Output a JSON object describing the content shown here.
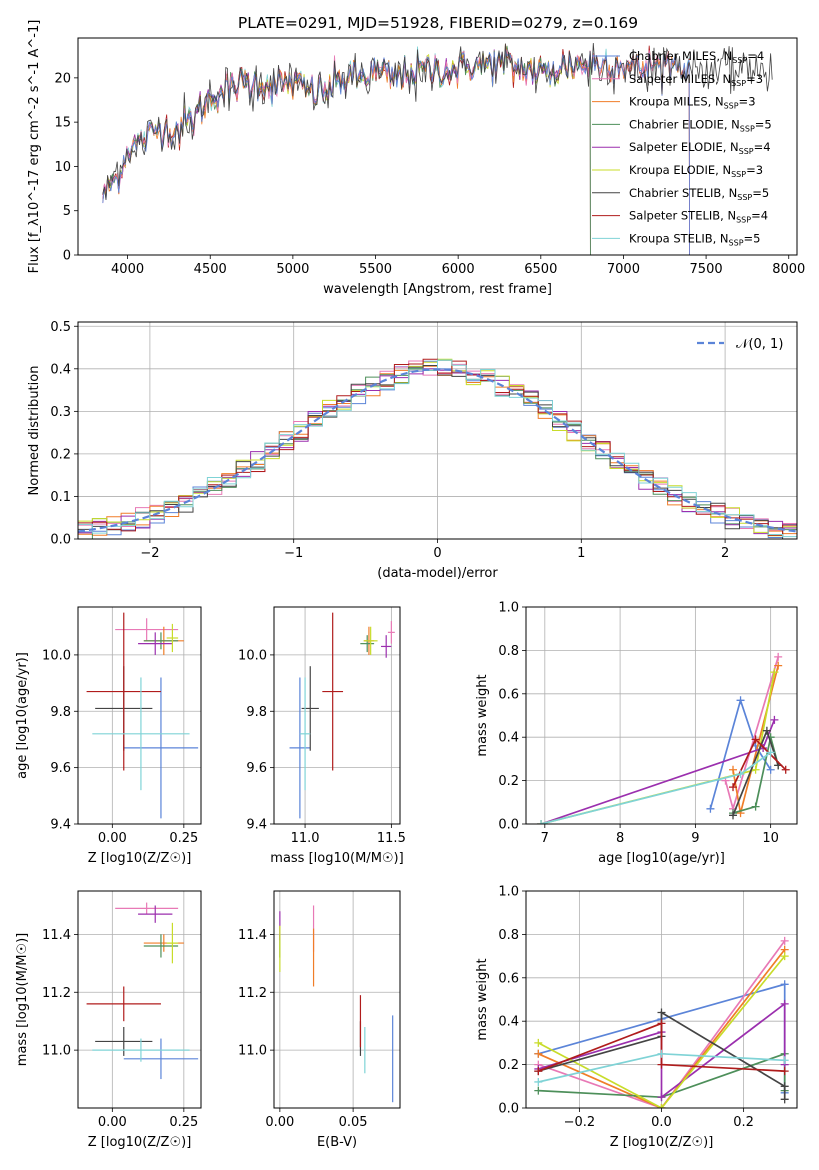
{
  "title": "PLATE=0291, MJD=51928, FIBERID=0279, z=0.169",
  "colors": {
    "Chabrier MILES": "#5b84d8",
    "Salpeter MILES": "#e879b6",
    "Kroupa MILES": "#f07d28",
    "Chabrier ELODIE": "#4d8f5a",
    "Salpeter ELODIE": "#9b2fae",
    "Kroupa ELODIE": "#c8dc2a",
    "Chabrier STELIB": "#444444",
    "Salpeter STELIB": "#b01c1c",
    "Kroupa STELIB": "#7fd3d6",
    "gauss": "#5b84d8"
  },
  "chart_data": [
    {
      "id": "spectrum",
      "type": "line",
      "xlabel": "wavelength [Angstrom, rest frame]",
      "ylabel": "Flux [f_λ10^-17 erg cm^-2 s^-1 A^-1]",
      "xlim": [
        3700,
        8050
      ],
      "ylim": [
        0,
        24.5
      ],
      "xticks": [
        4000,
        4500,
        5000,
        5500,
        6000,
        6500,
        7000,
        7500,
        8000
      ],
      "yticks": [
        0,
        5,
        10,
        15,
        20
      ],
      "grid": false,
      "legend_position": "top-right",
      "legend": [
        {
          "model": "Chabrier MILES",
          "nssp": "4"
        },
        {
          "model": "Salpeter MILES",
          "nssp": "3"
        },
        {
          "model": "Kroupa MILES",
          "nssp": "3"
        },
        {
          "model": "Chabrier ELODIE",
          "nssp": "5"
        },
        {
          "model": "Salpeter ELODIE",
          "nssp": "4"
        },
        {
          "model": "Kroupa ELODIE",
          "nssp": "3"
        },
        {
          "model": "Chabrier STELIB",
          "nssp": "5"
        },
        {
          "model": "Salpeter STELIB",
          "nssp": "4"
        },
        {
          "model": "Kroupa STELIB",
          "nssp": "5"
        }
      ],
      "continuum": {
        "x": [
          3850,
          3900,
          3950,
          4000,
          4100,
          4200,
          4300,
          4400,
          4500,
          4600,
          4700,
          4800,
          4900,
          5000,
          5100,
          5200,
          5300,
          5400,
          5500,
          5600,
          5700,
          5800,
          5900,
          6000,
          6100,
          6200,
          6300,
          6400,
          6500,
          6600,
          6700,
          6800,
          6900,
          7000,
          7100,
          7200,
          7300,
          7400,
          7500,
          7600
        ],
        "y": [
          6.5,
          8,
          9,
          12,
          13,
          14.5,
          14,
          15.5,
          18,
          18.5,
          19.5,
          19.5,
          19,
          19.5,
          18.5,
          18.5,
          20,
          20,
          20.5,
          20,
          20.5,
          21,
          21,
          21,
          21.5,
          21.5,
          21.5,
          21,
          20.5,
          21,
          21.5,
          21.5,
          21.5,
          21.5,
          21,
          21.5,
          21.5,
          21,
          21,
          21
        ]
      },
      "model_end_wavelength": {
        "Chabrier MILES": 7400,
        "Salpeter MILES": 7400,
        "Kroupa MILES": 7400,
        "Chabrier ELODIE": 6800,
        "Salpeter ELODIE": 6800,
        "Kroupa ELODIE": 6800,
        "Chabrier STELIB": 7900,
        "Salpeter STELIB": 7400,
        "Kroupa STELIB": 7400
      }
    },
    {
      "id": "residuals",
      "type": "line",
      "xlabel": "(data-model)/error",
      "ylabel": "Normed distribution",
      "xlim": [
        -2.5,
        2.5
      ],
      "ylim": [
        0,
        0.51
      ],
      "xticks": [
        -2,
        -1,
        0,
        1,
        2
      ],
      "xticklabels": [
        "−2",
        "−1",
        "0",
        "1",
        "2"
      ],
      "yticks": [
        0,
        0.1,
        0.2,
        0.3,
        0.4,
        0.5
      ],
      "yticklabels": [
        "0.0",
        "0.1",
        "0.2",
        "0.3",
        "0.4",
        "0.5"
      ],
      "grid": true,
      "legend_position": "top-right",
      "legend_label": "𝒩(0, 1)",
      "bin_width": 0.1
    },
    {
      "id": "age-vs-Z",
      "type": "scatter",
      "xlabel": "Z [log10(Z/Z☉)]",
      "ylabel": "age  [log10(age/yr)]",
      "xlim": [
        -0.12,
        0.31
      ],
      "ylim": [
        9.4,
        10.17
      ],
      "xticks": [
        0,
        0.25
      ],
      "xticklabels": [
        "0.00",
        "0.25"
      ],
      "yticks": [
        9.4,
        9.6,
        9.8,
        10.0
      ],
      "yticklabels": [
        "9.4",
        "9.6",
        "9.8",
        "10.0"
      ],
      "grid": true,
      "points": [
        {
          "model": "Chabrier MILES",
          "x": 0.17,
          "xerr": 0.13,
          "y": 9.67,
          "yerr": 0.25
        },
        {
          "model": "Salpeter MILES",
          "x": 0.12,
          "xerr": 0.11,
          "y": 10.09,
          "yerr": 0.04
        },
        {
          "model": "Kroupa MILES",
          "x": 0.18,
          "xerr": 0.07,
          "y": 10.05,
          "yerr": 0.05
        },
        {
          "model": "Chabrier ELODIE",
          "x": 0.17,
          "xerr": 0.06,
          "y": 10.05,
          "yerr": 0.03
        },
        {
          "model": "Salpeter ELODIE",
          "x": 0.15,
          "xerr": 0.06,
          "y": 10.04,
          "yerr": 0.04
        },
        {
          "model": "Kroupa ELODIE",
          "x": 0.21,
          "xerr": 0.02,
          "y": 10.06,
          "yerr": 0.05
        },
        {
          "model": "Chabrier STELIB",
          "x": 0.04,
          "xerr": 0.1,
          "y": 9.81,
          "yerr": 0.15
        },
        {
          "model": "Salpeter STELIB",
          "x": 0.04,
          "xerr": 0.13,
          "y": 9.87,
          "yerr": 0.28
        },
        {
          "model": "Kroupa STELIB",
          "x": 0.1,
          "xerr": 0.17,
          "y": 9.72,
          "yerr": 0.2
        }
      ]
    },
    {
      "id": "age-vs-mass",
      "type": "scatter",
      "xlabel": "mass [log10(M/M☉)]",
      "ylabel": "",
      "xlim": [
        10.82,
        11.55
      ],
      "ylim": [
        9.4,
        10.17
      ],
      "xticks": [
        11.0,
        11.5
      ],
      "xticklabels": [
        "11.0",
        "11.5"
      ],
      "yticks": [
        9.4,
        9.6,
        9.8,
        10.0
      ],
      "yticklabels": [
        "9.4",
        "9.6",
        "9.8",
        "10.0"
      ],
      "grid": true,
      "points": [
        {
          "model": "Chabrier MILES",
          "x": 10.97,
          "xerr": 0.06,
          "y": 9.67,
          "yerr": 0.25
        },
        {
          "model": "Salpeter MILES",
          "x": 11.5,
          "xerr": 0.02,
          "y": 10.08,
          "yerr": 0.04
        },
        {
          "model": "Kroupa MILES",
          "x": 11.37,
          "xerr": 0.03,
          "y": 10.05,
          "yerr": 0.05
        },
        {
          "model": "Chabrier ELODIE",
          "x": 11.36,
          "xerr": 0.04,
          "y": 10.04,
          "yerr": 0.03
        },
        {
          "model": "Salpeter ELODIE",
          "x": 11.47,
          "xerr": 0.03,
          "y": 10.03,
          "yerr": 0.04
        },
        {
          "model": "Kroupa ELODIE",
          "x": 11.38,
          "xerr": 0.04,
          "y": 10.05,
          "yerr": 0.05
        },
        {
          "model": "Chabrier STELIB",
          "x": 11.03,
          "xerr": 0.05,
          "y": 9.81,
          "yerr": 0.15
        },
        {
          "model": "Salpeter STELIB",
          "x": 11.16,
          "xerr": 0.06,
          "y": 9.87,
          "yerr": 0.28
        },
        {
          "model": "Kroupa STELIB",
          "x": 11.0,
          "xerr": 0.03,
          "y": 9.72,
          "yerr": 0.2
        }
      ]
    },
    {
      "id": "weight-vs-age",
      "type": "line",
      "xlabel": "age  [log10(age/yr)]",
      "ylabel": "mass weight",
      "xlim": [
        6.75,
        10.35
      ],
      "ylim": [
        0,
        1
      ],
      "xticks": [
        7,
        8,
        9,
        10
      ],
      "yticks": [
        0,
        0.2,
        0.4,
        0.6,
        0.8,
        1.0
      ],
      "yticklabels": [
        "0.0",
        "0.2",
        "0.4",
        "0.6",
        "0.8",
        "1.0"
      ],
      "grid": true,
      "series": [
        {
          "model": "Chabrier MILES",
          "x": [
            9.2,
            9.6,
            9.8,
            10.0
          ],
          "y": [
            0.07,
            0.57,
            0.36,
            0.25
          ]
        },
        {
          "model": "Salpeter MILES",
          "x": [
            9.4,
            9.5,
            10.1
          ],
          "y": [
            0.2,
            0.07,
            0.77
          ]
        },
        {
          "model": "Kroupa MILES",
          "x": [
            9.5,
            9.6,
            10.1
          ],
          "y": [
            0.25,
            0.05,
            0.73
          ]
        },
        {
          "model": "Chabrier ELODIE",
          "x": [
            9.5,
            9.8,
            10.0,
            10.1
          ],
          "y": [
            0.05,
            0.08,
            0.4,
            0.27
          ]
        },
        {
          "model": "Salpeter ELODIE",
          "x": [
            6.95,
            9.9,
            10.05
          ],
          "y": [
            0.0,
            0.35,
            0.48
          ]
        },
        {
          "model": "Kroupa ELODIE",
          "x": [
            6.95,
            9.8,
            10.05
          ],
          "y": [
            0.0,
            0.25,
            0.7
          ]
        },
        {
          "model": "Chabrier STELIB",
          "x": [
            9.5,
            9.95,
            10.1
          ],
          "y": [
            0.04,
            0.43,
            0.27
          ]
        },
        {
          "model": "Salpeter STELIB",
          "x": [
            9.5,
            9.8,
            10.2
          ],
          "y": [
            0.17,
            0.39,
            0.25
          ]
        },
        {
          "model": "Kroupa STELIB",
          "x": [
            6.95,
            9.6,
            10.0
          ],
          "y": [
            0.0,
            0.23,
            0.33
          ]
        }
      ]
    },
    {
      "id": "mass-vs-Z",
      "type": "scatter",
      "xlabel": "Z [log10(Z/Z☉)]",
      "ylabel": "mass [log10(M/M☉)]",
      "xlim": [
        -0.12,
        0.31
      ],
      "ylim": [
        10.8,
        11.55
      ],
      "xticks": [
        0,
        0.25
      ],
      "xticklabels": [
        "0.00",
        "0.25"
      ],
      "yticks": [
        11.0,
        11.2,
        11.4
      ],
      "yticklabels": [
        "11.0",
        "11.2",
        "11.4"
      ],
      "grid": true,
      "points": [
        {
          "model": "Chabrier MILES",
          "x": 0.17,
          "xerr": 0.13,
          "y": 10.97,
          "yerr": 0.07
        },
        {
          "model": "Salpeter MILES",
          "x": 0.12,
          "xerr": 0.11,
          "y": 11.49,
          "yerr": 0.02
        },
        {
          "model": "Kroupa MILES",
          "x": 0.18,
          "xerr": 0.07,
          "y": 11.37,
          "yerr": 0.03
        },
        {
          "model": "Chabrier ELODIE",
          "x": 0.17,
          "xerr": 0.06,
          "y": 11.36,
          "yerr": 0.04
        },
        {
          "model": "Salpeter ELODIE",
          "x": 0.15,
          "xerr": 0.06,
          "y": 11.47,
          "yerr": 0.03
        },
        {
          "model": "Kroupa ELODIE",
          "x": 0.21,
          "xerr": 0.02,
          "y": 11.37,
          "yerr": 0.07
        },
        {
          "model": "Chabrier STELIB",
          "x": 0.04,
          "xerr": 0.1,
          "y": 11.03,
          "yerr": 0.05
        },
        {
          "model": "Salpeter STELIB",
          "x": 0.04,
          "xerr": 0.13,
          "y": 11.16,
          "yerr": 0.06
        },
        {
          "model": "Kroupa STELIB",
          "x": 0.1,
          "xerr": 0.17,
          "y": 11.0,
          "yerr": 0.04
        }
      ]
    },
    {
      "id": "mass-vs-EBV",
      "type": "scatter",
      "xlabel": "E(B-V)",
      "ylabel": "",
      "xlim": [
        -0.004,
        0.082
      ],
      "ylim": [
        10.8,
        11.55
      ],
      "xticks": [
        0.0,
        0.05
      ],
      "xticklabels": [
        "0.00",
        "0.05"
      ],
      "yticks": [
        11.0,
        11.2,
        11.4
      ],
      "yticklabels": [
        "11.0",
        "11.2",
        "11.4"
      ],
      "grid": true,
      "points": [
        {
          "model": "Chabrier MILES",
          "x": 0.077,
          "xerr": 0,
          "y": 10.97,
          "yerr": 0.15
        },
        {
          "model": "Salpeter MILES",
          "x": 0.023,
          "xerr": 0,
          "y": 11.42,
          "yerr": 0.08
        },
        {
          "model": "Kroupa MILES",
          "x": 0.023,
          "xerr": 0,
          "y": 11.32,
          "yerr": 0.1
        },
        {
          "model": "Chabrier ELODIE",
          "x": 0.0,
          "xerr": 0,
          "y": 11.36,
          "yerr": 0.04
        },
        {
          "model": "Salpeter ELODIE",
          "x": 0.0,
          "xerr": 0,
          "y": 11.43,
          "yerr": 0.05
        },
        {
          "model": "Kroupa ELODIE",
          "x": 0.0,
          "xerr": 0,
          "y": 11.35,
          "yerr": 0.08
        },
        {
          "model": "Chabrier STELIB",
          "x": 0.055,
          "xerr": 0,
          "y": 11.04,
          "yerr": 0.06
        },
        {
          "model": "Salpeter STELIB",
          "x": 0.055,
          "xerr": 0,
          "y": 11.1,
          "yerr": 0.09
        },
        {
          "model": "Kroupa STELIB",
          "x": 0.058,
          "xerr": 0,
          "y": 11.0,
          "yerr": 0.08
        }
      ]
    },
    {
      "id": "weight-vs-Z",
      "type": "line",
      "xlabel": "Z [log10(Z/Z☉)]",
      "ylabel": "mass weight",
      "xlim": [
        -0.33,
        0.33
      ],
      "ylim": [
        0,
        1
      ],
      "xticks": [
        -0.2,
        0,
        0.2
      ],
      "xticklabels": [
        "−0.2",
        "0.0",
        "0.2"
      ],
      "yticks": [
        0,
        0.2,
        0.4,
        0.6,
        0.8,
        1.0
      ],
      "yticklabels": [
        "0.0",
        "0.2",
        "0.4",
        "0.6",
        "0.8",
        "1.0"
      ],
      "grid": true,
      "series": [
        {
          "model": "Chabrier MILES",
          "x": [
            -0.3,
            0.0,
            0.3,
            0.3
          ],
          "y": [
            0.25,
            0.41,
            0.57,
            0.07
          ]
        },
        {
          "model": "Salpeter MILES",
          "x": [
            -0.3,
            0.0,
            0.3
          ],
          "y": [
            0.2,
            0.0,
            0.77
          ]
        },
        {
          "model": "Kroupa MILES",
          "x": [
            -0.3,
            0.0,
            0.3
          ],
          "y": [
            0.25,
            0.0,
            0.73
          ]
        },
        {
          "model": "Chabrier ELODIE",
          "x": [
            -0.3,
            0.0,
            0.3,
            0.3
          ],
          "y": [
            0.08,
            0.05,
            0.25,
            0.08
          ]
        },
        {
          "model": "Salpeter ELODIE",
          "x": [
            -0.3,
            0.0,
            0.0,
            0.3,
            0.3
          ],
          "y": [
            0.18,
            0.35,
            0.05,
            0.48,
            0.2
          ]
        },
        {
          "model": "Kroupa ELODIE",
          "x": [
            -0.3,
            0.0,
            0.3
          ],
          "y": [
            0.3,
            0.0,
            0.7
          ]
        },
        {
          "model": "Chabrier STELIB",
          "x": [
            -0.3,
            0.0,
            0.0,
            0.3,
            0.3
          ],
          "y": [
            0.17,
            0.33,
            0.44,
            0.1,
            0.04
          ]
        },
        {
          "model": "Salpeter STELIB",
          "x": [
            -0.3,
            0.0,
            0.0,
            0.3
          ],
          "y": [
            0.17,
            0.39,
            0.2,
            0.17
          ]
        },
        {
          "model": "Kroupa STELIB",
          "x": [
            -0.3,
            0.0,
            0.3
          ],
          "y": [
            0.12,
            0.25,
            0.22
          ]
        }
      ]
    }
  ]
}
